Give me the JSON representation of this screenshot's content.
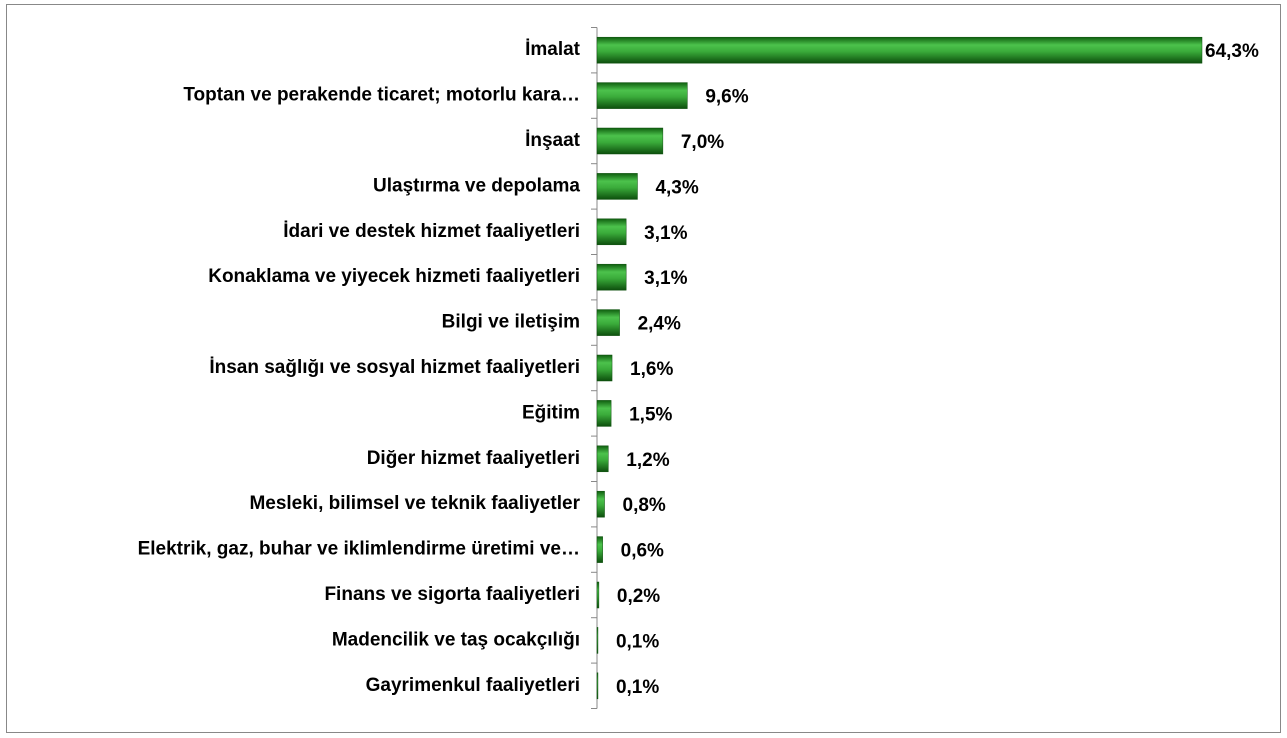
{
  "chart_data": {
    "type": "bar",
    "orientation": "horizontal",
    "categories": [
      "İmalat",
      "Toptan ve perakende ticaret; motorlu kara…",
      "İnşaat",
      "Ulaştırma ve depolama",
      "İdari ve destek hizmet faaliyetleri",
      "Konaklama ve yiyecek hizmeti faaliyetleri",
      "Bilgi ve iletişim",
      "İnsan sağlığı ve sosyal hizmet faaliyetleri",
      "Eğitim",
      "Diğer hizmet faaliyetleri",
      "Mesleki, bilimsel ve teknik faaliyetler",
      "Elektrik, gaz, buhar ve iklimlendirme üretimi ve…",
      "Finans ve sigorta faaliyetleri",
      "Madencilik ve taş ocakçılığı",
      "Gayrimenkul faaliyetleri"
    ],
    "values": [
      64.3,
      9.6,
      7.0,
      4.3,
      3.1,
      3.1,
      2.4,
      1.6,
      1.5,
      1.2,
      0.8,
      0.6,
      0.2,
      0.1,
      0.1
    ],
    "value_labels": [
      "64,3%",
      "9,6%",
      "7,0%",
      "4,3%",
      "3,1%",
      "3,1%",
      "2,4%",
      "1,6%",
      "1,5%",
      "1,2%",
      "0,8%",
      "0,6%",
      "0,2%",
      "0,1%",
      "0,1%"
    ],
    "color": "#2e9e2e"
  }
}
